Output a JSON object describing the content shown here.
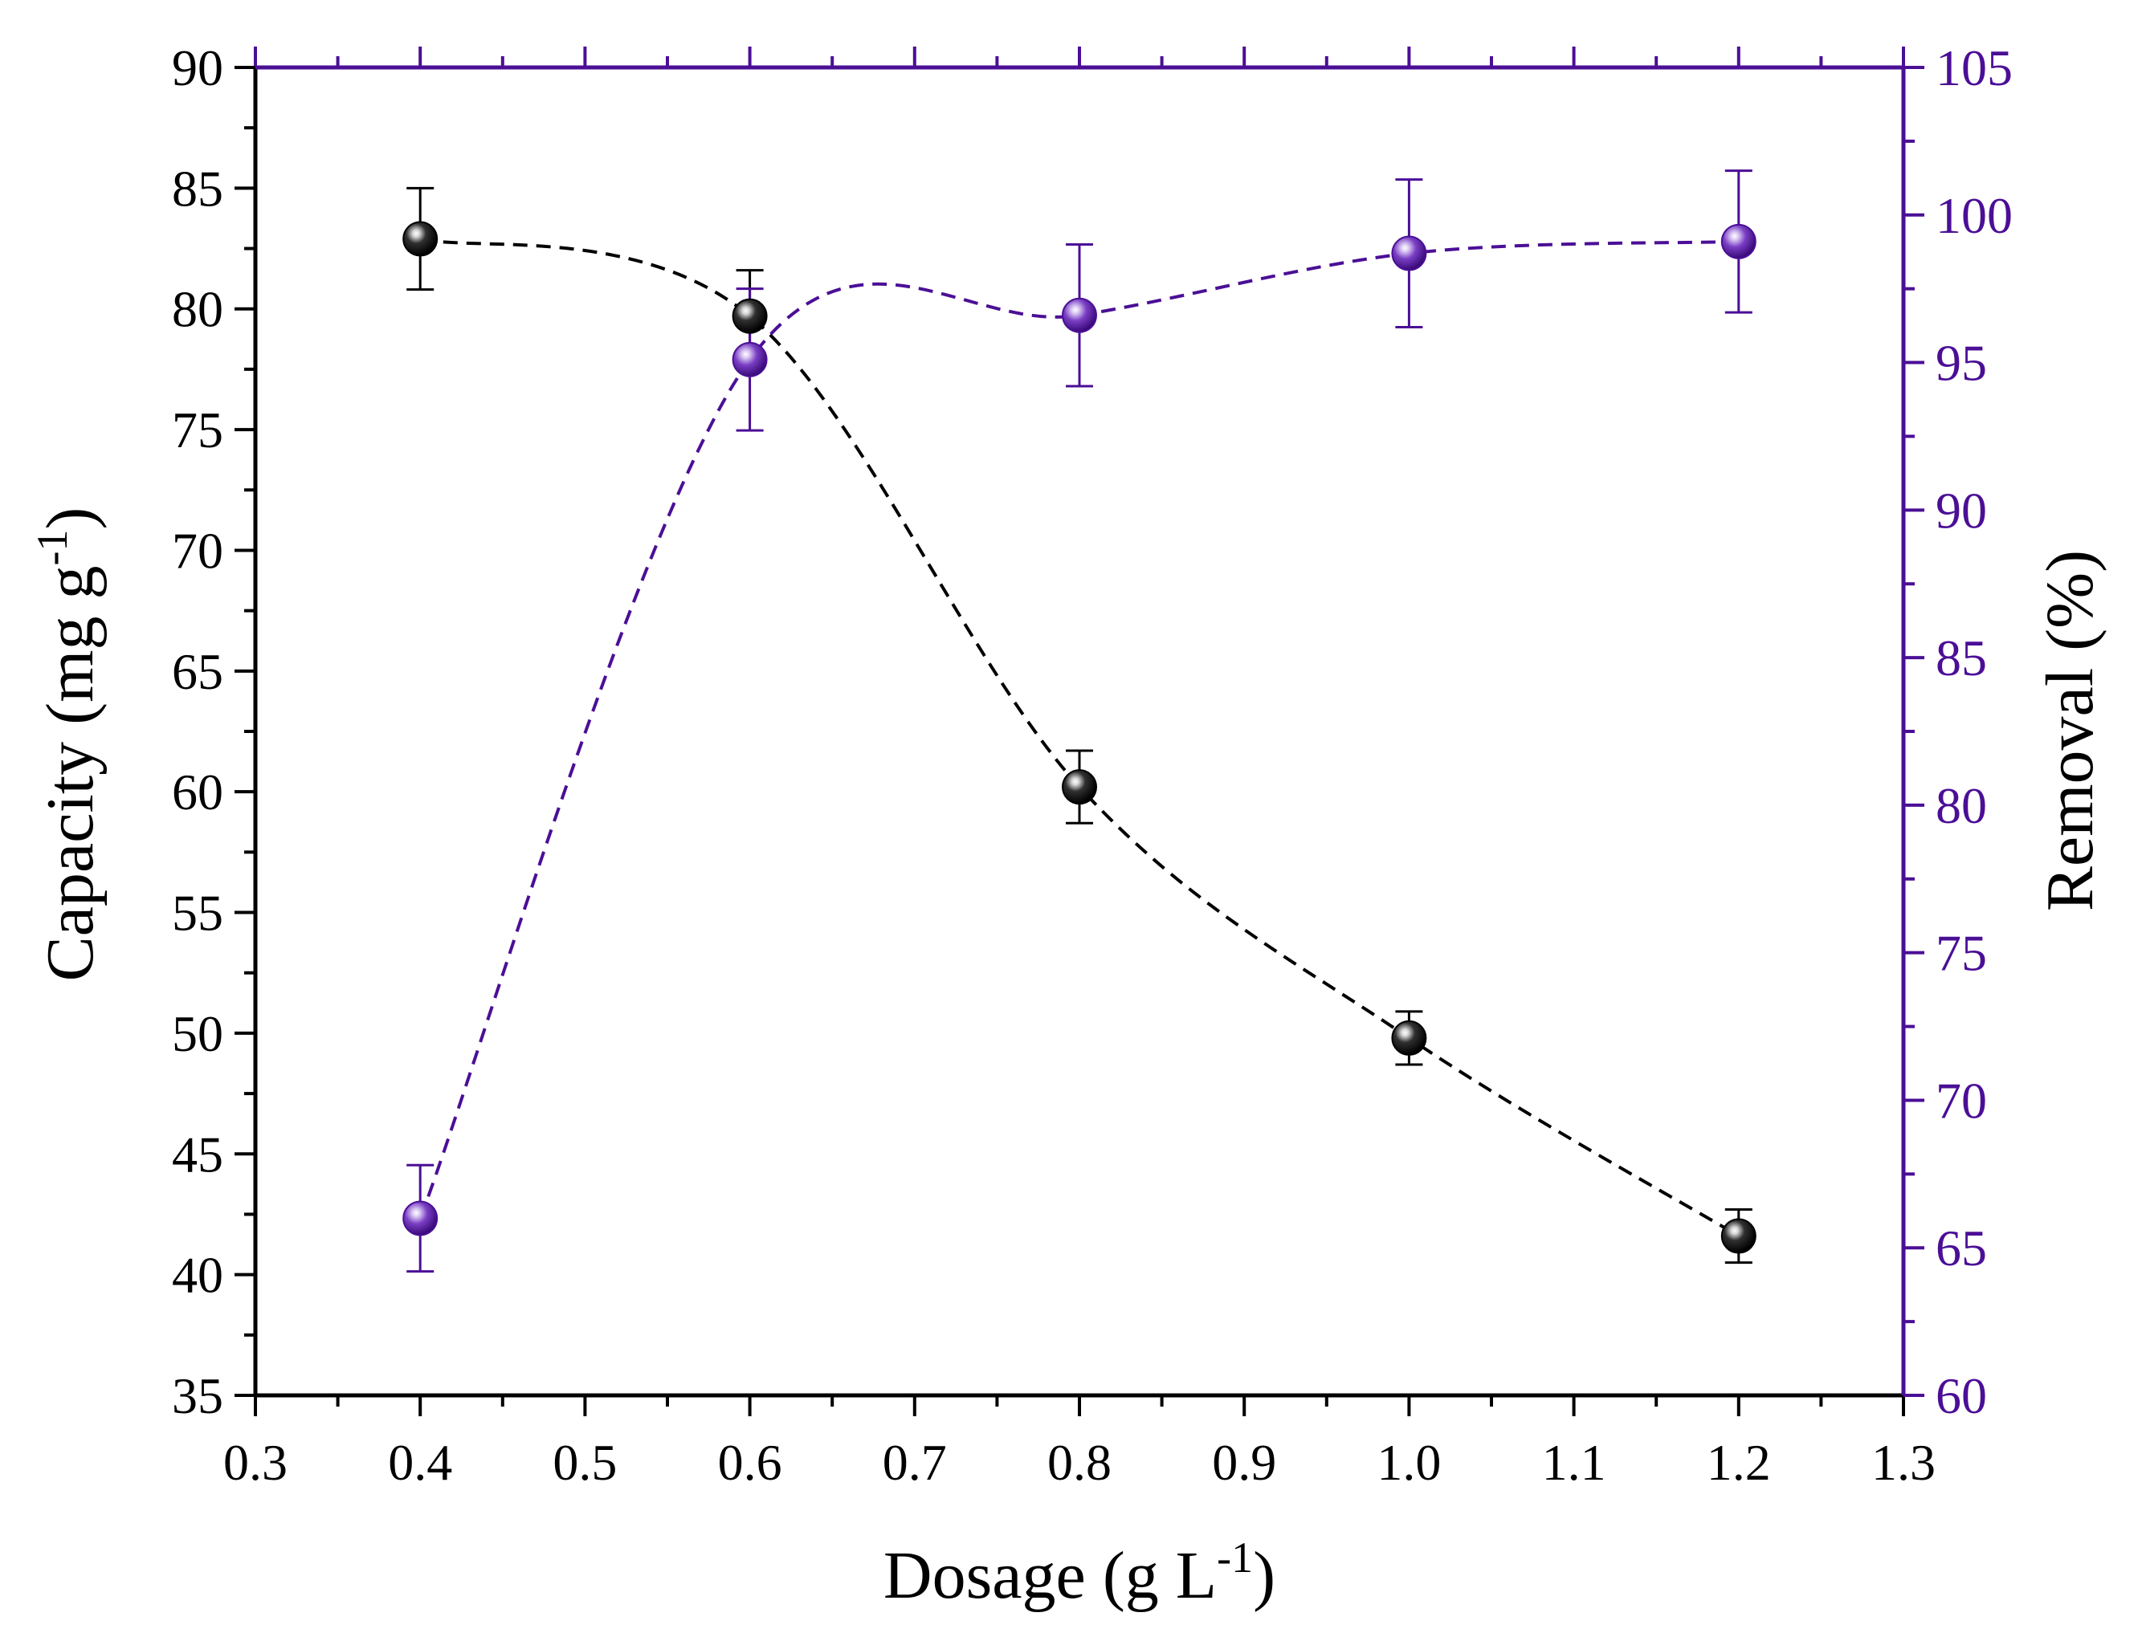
{
  "chart_data": {
    "type": "line",
    "x": [
      0.4,
      0.6,
      0.8,
      1.0,
      1.2
    ],
    "xlabel": "Dosage (g L",
    "xlabel_sup": "-1",
    "xlabel_close": ")",
    "xlim": [
      0.3,
      1.3
    ],
    "xticks": [
      0.3,
      0.4,
      0.5,
      0.6,
      0.7,
      0.8,
      0.9,
      1.0,
      1.1,
      1.2,
      1.3
    ],
    "xtick_labels": [
      "0.3",
      "0.4",
      "0.5",
      "0.6",
      "0.7",
      "0.8",
      "0.9",
      "1.0",
      "1.1",
      "1.2",
      "1.3"
    ],
    "left_axis": {
      "label": "Capacity (mg g",
      "label_sup": "-1",
      "label_close": ")",
      "ylim": [
        35,
        90
      ],
      "ticks": [
        35,
        40,
        45,
        50,
        55,
        60,
        65,
        70,
        75,
        80,
        85,
        90
      ],
      "tick_labels": [
        "35",
        "40",
        "45",
        "50",
        "55",
        "60",
        "65",
        "70",
        "75",
        "80",
        "85",
        "90"
      ]
    },
    "right_axis": {
      "label": "Removal (%)",
      "ylim": [
        60,
        105
      ],
      "ticks": [
        60,
        65,
        70,
        75,
        80,
        85,
        90,
        95,
        100,
        105
      ],
      "tick_labels": [
        "60",
        "65",
        "70",
        "75",
        "80",
        "85",
        "90",
        "95",
        "100",
        "105"
      ]
    },
    "series": [
      {
        "name": "Capacity",
        "axis": "left",
        "color": "#000000",
        "values": [
          82.9,
          79.7,
          60.2,
          49.8,
          41.6
        ],
        "errors": [
          2.1,
          1.9,
          1.5,
          1.1,
          1.1
        ]
      },
      {
        "name": "Removal",
        "axis": "right",
        "color": "#4b0f96",
        "values": [
          66.0,
          95.1,
          96.6,
          98.7,
          99.1
        ],
        "errors": [
          1.8,
          2.4,
          2.4,
          2.5,
          2.4
        ]
      }
    ],
    "line_style": "dashed spline",
    "grid": false,
    "legend": "none"
  }
}
